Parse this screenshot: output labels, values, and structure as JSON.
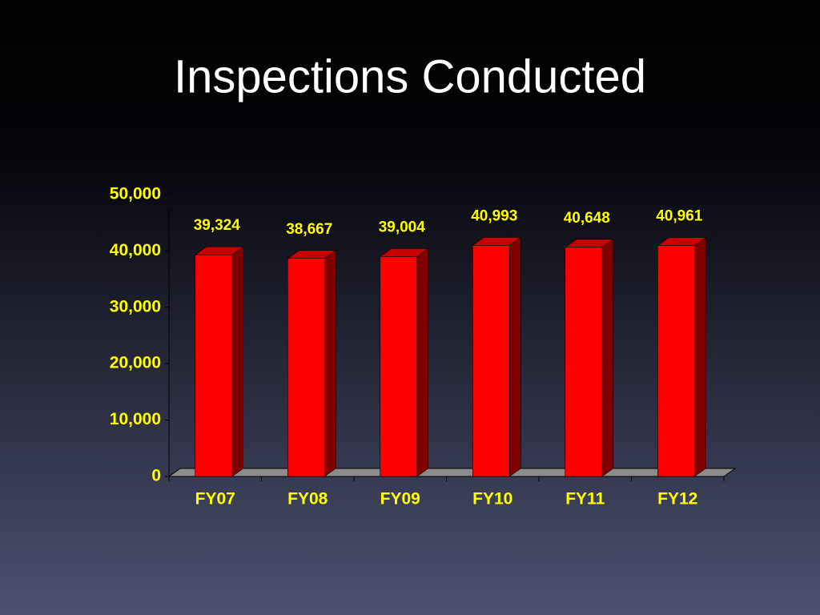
{
  "chart_data": {
    "type": "bar",
    "title": "Inspections Conducted",
    "categories": [
      "FY07",
      "FY08",
      "FY09",
      "FY10",
      "FY11",
      "FY12"
    ],
    "values": [
      39324,
      38667,
      39004,
      40993,
      40648,
      40961
    ],
    "value_labels": [
      "39,324",
      "38,667",
      "39,004",
      "40,993",
      "40,648",
      "40,961"
    ],
    "color": "#ff0000",
    "ylim": [
      0,
      50000
    ],
    "yticks": [
      0,
      {
        "value": 10000,
        "label": "10,000"
      },
      {
        "value": 20000,
        "label": "20,000"
      },
      {
        "value": 30000,
        "label": "30,000"
      },
      {
        "value": 40000,
        "label": "40,000"
      },
      {
        "value": 50000,
        "label": "50,000"
      }
    ]
  }
}
